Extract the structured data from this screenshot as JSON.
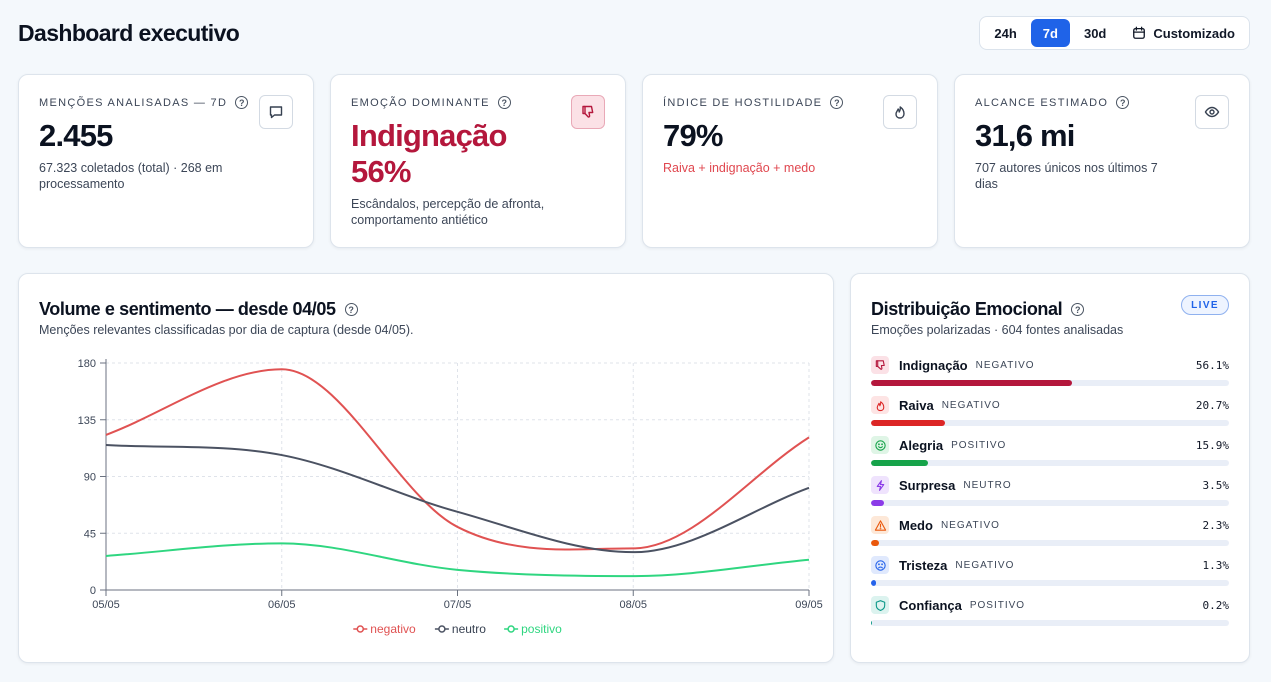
{
  "header": {
    "title": "Dashboard executivo"
  },
  "range": {
    "options": [
      "24h",
      "7d",
      "30d"
    ],
    "active": "7d",
    "custom_label": "Customizado"
  },
  "kpis": [
    {
      "label": "MENÇÕES ANALISADAS — 7D",
      "value": "2.455",
      "sub": "67.323 coletados (total) · 268 em processamento",
      "icon": "message-icon"
    },
    {
      "label": "EMOÇÃO DOMINANTE",
      "value": "Indignação",
      "value2": "56%",
      "sub": "Escândalos, percepção de afronta, comportamento antiético",
      "icon": "thumbs-down-icon"
    },
    {
      "label": "ÍNDICE DE HOSTILIDADE",
      "value": "79%",
      "sub": "Raiva + indignação + medo",
      "icon": "flame-icon"
    },
    {
      "label": "ALCANCE ESTIMADO",
      "value": "31,6 mi",
      "sub": "707 autores únicos nos últimos 7 dias",
      "icon": "eye-icon"
    }
  ],
  "volume": {
    "title": "Volume e sentimento — desde 04/05",
    "subtitle": "Menções relevantes classificadas por dia de captura (desde 04/05)."
  },
  "chart_data": {
    "type": "line",
    "x": [
      "05/05",
      "06/05",
      "07/05",
      "08/05",
      "09/05"
    ],
    "ylim": [
      0,
      180
    ],
    "yticks": [
      0,
      45,
      90,
      135,
      180
    ],
    "grid": true,
    "legend_position": "bottom",
    "series": [
      {
        "name": "negativo",
        "color": "#e05252",
        "values": [
          123,
          175,
          50,
          33,
          121
        ]
      },
      {
        "name": "neutro",
        "color": "#4b5262",
        "values": [
          115,
          107,
          62,
          30,
          81
        ]
      },
      {
        "name": "positivo",
        "color": "#2fd680",
        "values": [
          27,
          37,
          16,
          11,
          24
        ]
      }
    ]
  },
  "distribution": {
    "title": "Distribuição Emocional",
    "subtitle": "Emoções polarizadas · 604 fontes analisadas",
    "live_label": "LIVE",
    "items": [
      {
        "name": "Indignação",
        "tag": "NEGATIVO",
        "pct_label": "56.1%",
        "value": 56.1,
        "color": "#b4173c",
        "icon": "thumbs-down-icon",
        "icon_bg": "#fbe1e6"
      },
      {
        "name": "Raiva",
        "tag": "NEGATIVO",
        "pct_label": "20.7%",
        "value": 20.7,
        "color": "#dc2626",
        "icon": "flame-icon",
        "icon_bg": "#fde4e4"
      },
      {
        "name": "Alegria",
        "tag": "POSITIVO",
        "pct_label": "15.9%",
        "value": 15.9,
        "color": "#16a34a",
        "icon": "smile-icon",
        "icon_bg": "#dff5e6"
      },
      {
        "name": "Surpresa",
        "tag": "NEUTRO",
        "pct_label": "3.5%",
        "value": 3.5,
        "color": "#8b3be8",
        "icon": "zap-icon",
        "icon_bg": "#efe3fd"
      },
      {
        "name": "Medo",
        "tag": "NEGATIVO",
        "pct_label": "2.3%",
        "value": 2.3,
        "color": "#ea580c",
        "icon": "warning-icon",
        "icon_bg": "#fde8d8"
      },
      {
        "name": "Tristeza",
        "tag": "NEGATIVO",
        "pct_label": "1.3%",
        "value": 1.3,
        "color": "#2563eb",
        "icon": "frown-icon",
        "icon_bg": "#e0e9fd"
      },
      {
        "name": "Confiança",
        "tag": "POSITIVO",
        "pct_label": "0.2%",
        "value": 0.2,
        "color": "#0f9a8a",
        "icon": "shield-icon",
        "icon_bg": "#dcf3ef"
      }
    ]
  }
}
